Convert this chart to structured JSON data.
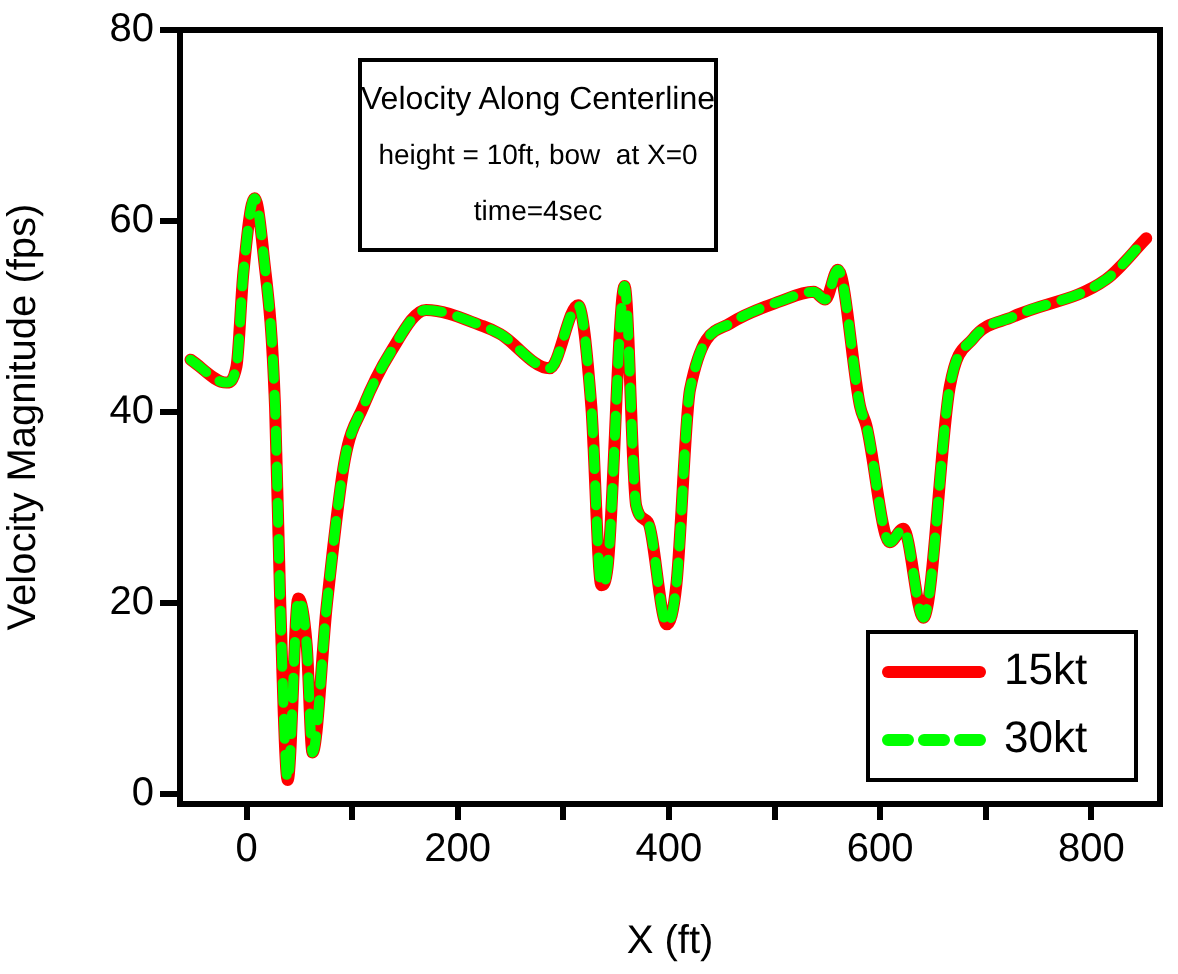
{
  "chart_data": {
    "type": "line",
    "title": "Velocity Along Centerline",
    "subtitle": "height = 10ft, bow  at X=0",
    "annotations": [
      "time=4sec"
    ],
    "xlabel": "X (ft)",
    "ylabel": "Velocity Magnitude (fps)",
    "x": [
      -53,
      -19,
      -9.5,
      -3,
      7.6,
      16,
      27,
      32,
      39,
      49,
      57,
      62.5,
      76,
      93,
      110.6,
      136,
      170,
      224,
      240,
      287,
      314,
      326.5,
      336,
      342,
      358,
      369,
      380,
      398,
      407,
      420,
      458,
      505,
      537,
      548,
      560,
      581,
      587,
      609,
      622,
      641,
      666,
      688,
      726,
      814,
      852
    ],
    "series": [
      {
        "name": "15kt",
        "color": "#ff0000",
        "line_style": "solid",
        "values": [
          45.5,
          43.1,
          44.8,
          54.6,
          62.4,
          56.6,
          40.6,
          19.8,
          1.5,
          20.5,
          15.6,
          4.4,
          19.8,
          35,
          40.6,
          46.2,
          50.7,
          49,
          48.2,
          44.6,
          51.2,
          40.6,
          21.9,
          23.9,
          53.2,
          30.2,
          28.5,
          17.8,
          21.9,
          42.4,
          49.3,
          51.6,
          52.6,
          51.8,
          54.9,
          40.6,
          38.6,
          26.4,
          27.8,
          18.5,
          42.7,
          47.7,
          50,
          53.9,
          58.2
        ]
      },
      {
        "name": "30kt",
        "color": "#00ff00",
        "line_style": "dashed",
        "values": [
          45.5,
          43.1,
          44.8,
          54.6,
          62.4,
          56.6,
          40.6,
          19.8,
          1.5,
          20.5,
          15.6,
          4.4,
          19.8,
          35,
          40.6,
          46.2,
          50.7,
          49,
          48.2,
          44.6,
          51.2,
          40.6,
          21.9,
          23.9,
          53.2,
          30.2,
          28.5,
          17.8,
          21.9,
          42.4,
          49.3,
          51.6,
          52.6,
          51.8,
          54.9,
          40.6,
          38.6,
          26.4,
          27.8,
          18.5,
          42.7,
          47.7,
          50,
          53.9,
          58.2
        ]
      }
    ],
    "xlim": [
      -63,
      865
    ],
    "xticks": [
      0,
      {
        "value": 100,
        "label": null
      },
      200,
      {
        "value": 300,
        "label": null
      },
      400,
      {
        "value": 500,
        "label": null
      },
      600,
      {
        "value": 700,
        "label": null
      },
      800
    ],
    "ylim": [
      -1,
      80
    ],
    "yticks": [
      0,
      20,
      40,
      60,
      80
    ],
    "grid": false,
    "legend": "bottom right",
    "marker": "none"
  }
}
